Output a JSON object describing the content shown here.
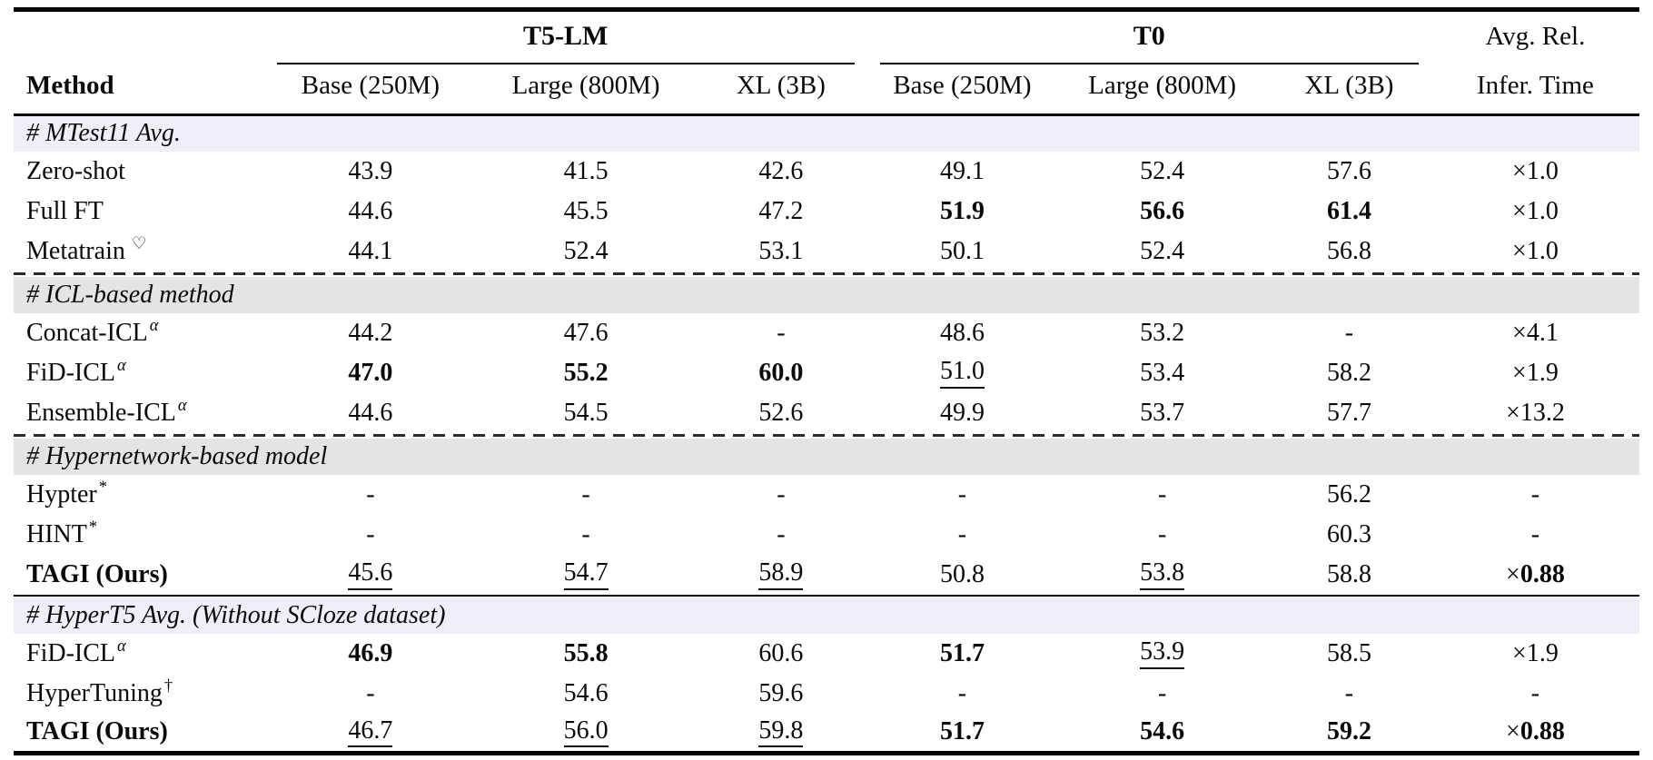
{
  "header": {
    "method": "Method",
    "groups": [
      {
        "label": "T5-LM",
        "cols": [
          "Base (250M)",
          "Large (800M)",
          "XL (3B)"
        ]
      },
      {
        "label": "T0",
        "cols": [
          "Base (250M)",
          "Large (800M)",
          "XL (3B)"
        ]
      }
    ],
    "last_col_top": "Avg. Rel.",
    "last_col_bottom": "Infer. Time"
  },
  "times_sign": "×",
  "colors": {
    "lavender": "#EFEFFA",
    "gray": "#E4E4E2",
    "rule": "#000000"
  },
  "sections": [
    {
      "title": "# MTest11 Avg.",
      "theme": "lavender",
      "separator": "none",
      "rows": [
        {
          "method": {
            "text": "Zero-shot"
          },
          "cells": [
            {
              "v": "43.9"
            },
            {
              "v": "41.5"
            },
            {
              "v": "42.6"
            },
            {
              "v": "49.1"
            },
            {
              "v": "52.4"
            },
            {
              "v": "57.6"
            },
            {
              "v": "1.0",
              "times": true
            }
          ]
        },
        {
          "method": {
            "text": "Full FT"
          },
          "cells": [
            {
              "v": "44.6"
            },
            {
              "v": "45.5"
            },
            {
              "v": "47.2"
            },
            {
              "v": "51.9",
              "b": true
            },
            {
              "v": "56.6",
              "b": true
            },
            {
              "v": "61.4",
              "b": true
            },
            {
              "v": "1.0",
              "times": true
            }
          ]
        },
        {
          "method": {
            "text": "Metatrain",
            "sup": "♡"
          },
          "cells": [
            {
              "v": "44.1"
            },
            {
              "v": "52.4"
            },
            {
              "v": "53.1"
            },
            {
              "v": "50.1"
            },
            {
              "v": "52.4"
            },
            {
              "v": "56.8"
            },
            {
              "v": "1.0",
              "times": true
            }
          ]
        }
      ]
    },
    {
      "title": "# ICL-based method",
      "theme": "gray",
      "separator": "dashed",
      "rows": [
        {
          "method": {
            "text": "Concat-ICL",
            "sup": "α"
          },
          "cells": [
            {
              "v": "44.2"
            },
            {
              "v": "47.6"
            },
            {
              "v": "-"
            },
            {
              "v": "48.6"
            },
            {
              "v": "53.2"
            },
            {
              "v": "-"
            },
            {
              "v": "4.1",
              "times": true
            }
          ]
        },
        {
          "method": {
            "text": "FiD-ICL",
            "sup": "α"
          },
          "cells": [
            {
              "v": "47.0",
              "b": true
            },
            {
              "v": "55.2",
              "b": true
            },
            {
              "v": "60.0",
              "b": true
            },
            {
              "v": "51.0",
              "u": true
            },
            {
              "v": "53.4"
            },
            {
              "v": "58.2"
            },
            {
              "v": "1.9",
              "times": true
            }
          ]
        },
        {
          "method": {
            "text": "Ensemble-ICL",
            "sup": "α"
          },
          "cells": [
            {
              "v": "44.6"
            },
            {
              "v": "54.5"
            },
            {
              "v": "52.6"
            },
            {
              "v": "49.9"
            },
            {
              "v": "53.7"
            },
            {
              "v": "57.7"
            },
            {
              "v": "13.2",
              "times": true
            }
          ]
        }
      ]
    },
    {
      "title": "# Hypernetwork-based model",
      "theme": "gray",
      "separator": "dashed",
      "rows": [
        {
          "method": {
            "text": "Hypter",
            "sup": "*"
          },
          "cells": [
            {
              "v": "-"
            },
            {
              "v": "-"
            },
            {
              "v": "-"
            },
            {
              "v": "-"
            },
            {
              "v": "-"
            },
            {
              "v": "56.2"
            },
            {
              "v": "-"
            }
          ]
        },
        {
          "method": {
            "text": "HINT",
            "sup": "*"
          },
          "cells": [
            {
              "v": "-"
            },
            {
              "v": "-"
            },
            {
              "v": "-"
            },
            {
              "v": "-"
            },
            {
              "v": "-"
            },
            {
              "v": "60.3"
            },
            {
              "v": "-"
            }
          ]
        },
        {
          "method": {
            "text": "TAGI (Ours)",
            "bold": true
          },
          "cells": [
            {
              "v": "45.6",
              "u": true
            },
            {
              "v": "54.7",
              "u": true
            },
            {
              "v": "58.9",
              "u": true
            },
            {
              "v": "50.8"
            },
            {
              "v": "53.8",
              "u": true
            },
            {
              "v": "58.8"
            },
            {
              "v": "0.88",
              "times": true,
              "b": true
            }
          ]
        }
      ]
    },
    {
      "title": "# HyperT5 Avg. (Without SCloze dataset)",
      "theme": "lavender",
      "separator": "solid",
      "rows": [
        {
          "method": {
            "text": "FiD-ICL",
            "sup": "α"
          },
          "cells": [
            {
              "v": "46.9",
              "b": true
            },
            {
              "v": "55.8",
              "b": true
            },
            {
              "v": "60.6"
            },
            {
              "v": "51.7",
              "b": true
            },
            {
              "v": "53.9",
              "u": true
            },
            {
              "v": "58.5"
            },
            {
              "v": "1.9",
              "times": true
            }
          ]
        },
        {
          "method": {
            "text": "HyperTuning",
            "sup": "†"
          },
          "cells": [
            {
              "v": "-"
            },
            {
              "v": "54.6"
            },
            {
              "v": "59.6"
            },
            {
              "v": "-"
            },
            {
              "v": "-"
            },
            {
              "v": "-"
            },
            {
              "v": "-"
            }
          ]
        },
        {
          "method": {
            "text": "TAGI (Ours)",
            "bold": true
          },
          "cells": [
            {
              "v": "46.7",
              "u": true
            },
            {
              "v": "56.0",
              "u": true
            },
            {
              "v": "59.8",
              "u": true
            },
            {
              "v": "51.7",
              "b": true
            },
            {
              "v": "54.6",
              "b": true
            },
            {
              "v": "59.2",
              "b": true
            },
            {
              "v": "0.88",
              "times": true,
              "b": true
            }
          ]
        }
      ]
    }
  ]
}
